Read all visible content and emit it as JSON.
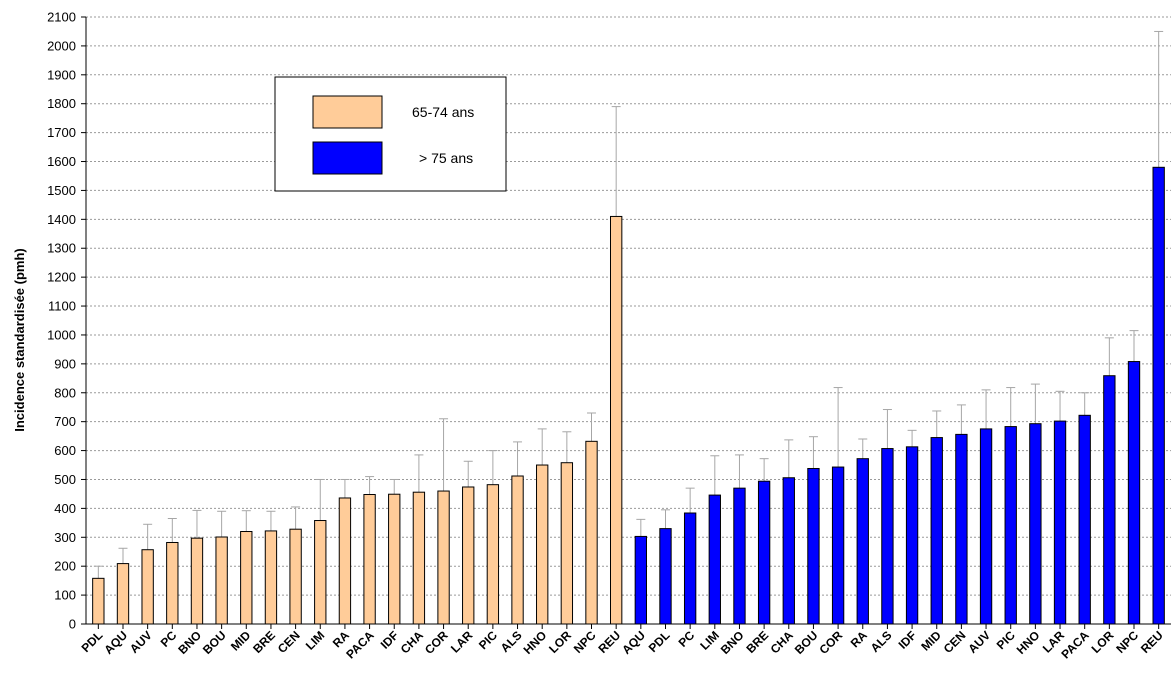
{
  "chart_data": {
    "type": "bar",
    "ylabel": "Incidence standardisée (pmh)",
    "ylim": [
      0,
      2100
    ],
    "ytick_step": 100,
    "grid": true,
    "legend_position": "top-left",
    "series": [
      {
        "name": "65-74 ans",
        "color": "#FFCC99",
        "categories": [
          "PDL",
          "AQU",
          "AUV",
          "PC",
          "BNO",
          "BOU",
          "MID",
          "BRE",
          "CEN",
          "LIM",
          "RA",
          "PACA",
          "IDF",
          "CHA",
          "COR",
          "LAR",
          "PIC",
          "ALS",
          "HNO",
          "LOR",
          "NPC",
          "REU"
        ],
        "values": [
          158,
          209,
          257,
          282,
          297,
          301,
          320,
          322,
          328,
          358,
          436,
          448,
          449,
          456,
          460,
          474,
          482,
          512,
          550,
          558,
          632,
          1410
        ],
        "err_low": [
          120,
          160,
          190,
          200,
          210,
          215,
          250,
          255,
          255,
          240,
          390,
          395,
          400,
          330,
          215,
          390,
          370,
          400,
          430,
          460,
          540,
          1030
        ],
        "err_high": [
          200,
          262,
          345,
          365,
          393,
          390,
          392,
          390,
          405,
          500,
          500,
          510,
          500,
          585,
          710,
          563,
          600,
          630,
          675,
          665,
          730,
          1790
        ]
      },
      {
        "name": "> 75 ans",
        "color": "#0000FF",
        "categories": [
          "AQU",
          "PDL",
          "PC",
          "LIM",
          "BNO",
          "BRE",
          "CHA",
          "BOU",
          "COR",
          "RA",
          "ALS",
          "IDF",
          "MID",
          "CEN",
          "AUV",
          "PIC",
          "HNO",
          "LAR",
          "PACA",
          "LOR",
          "NPC",
          "REU"
        ],
        "values": [
          303,
          330,
          384,
          446,
          470,
          494,
          506,
          538,
          543,
          572,
          607,
          613,
          645,
          656,
          675,
          683,
          693,
          702,
          722,
          859,
          908,
          1580
        ],
        "err_low": [
          243,
          265,
          298,
          310,
          358,
          410,
          375,
          428,
          270,
          505,
          470,
          555,
          553,
          555,
          540,
          548,
          555,
          600,
          645,
          725,
          795,
          1105
        ],
        "err_high": [
          362,
          395,
          470,
          582,
          585,
          572,
          637,
          648,
          818,
          640,
          742,
          670,
          737,
          758,
          810,
          818,
          830,
          805,
          800,
          990,
          1015,
          2050
        ]
      }
    ]
  }
}
